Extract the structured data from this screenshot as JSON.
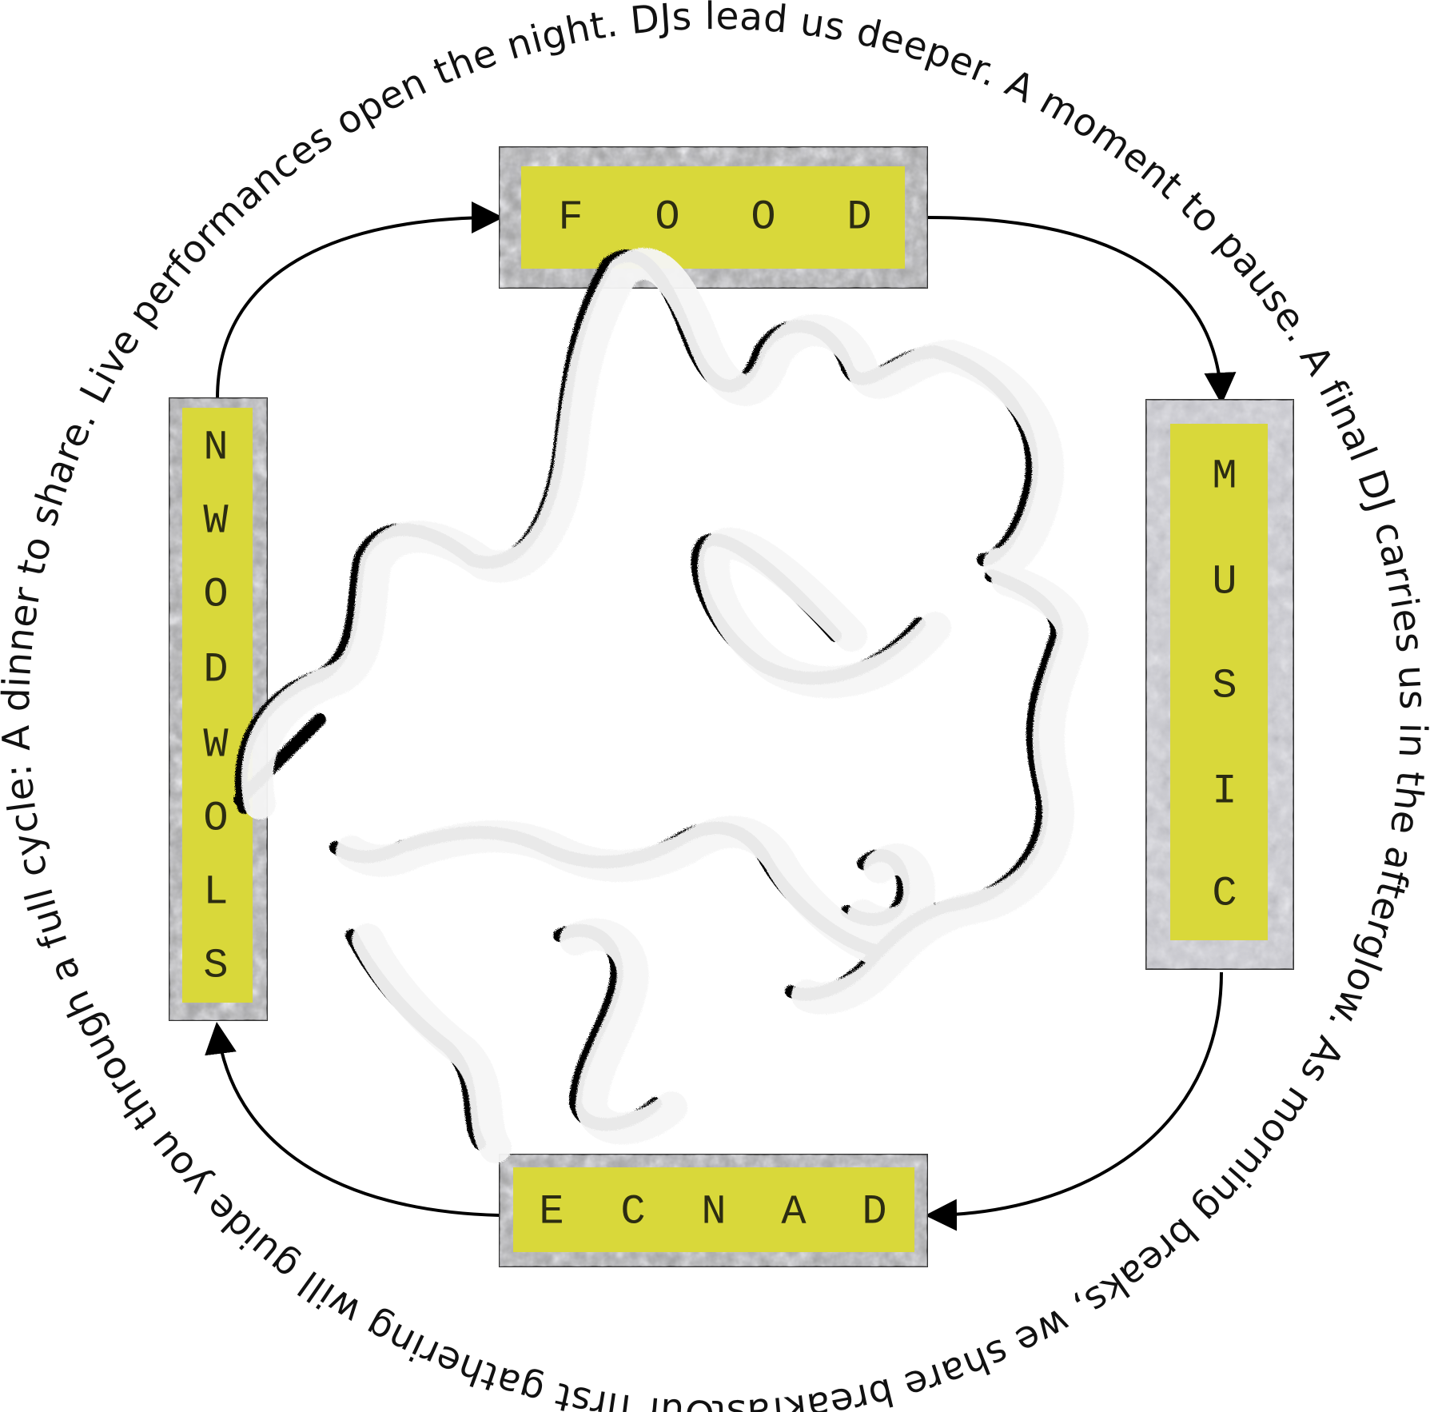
{
  "ring_caption": "Our first gathering will guide you through a full cycle: A dinner to share. Live performances open the night. DJs lead us deeper. A moment to pause. A final DJ carries us in the afterglow. As morning breaks, we share breakfast.",
  "stations": {
    "top": {
      "label": "FOOD",
      "letters": [
        "F",
        "O",
        "O",
        "D"
      ]
    },
    "right": {
      "label": "MUSIC",
      "letters": [
        "M",
        "U",
        "S",
        "I",
        "C"
      ]
    },
    "bottom": {
      "label": "ECNAD",
      "letters": [
        "E",
        "C",
        "N",
        "A",
        "D"
      ]
    },
    "left": {
      "label": "NWODWOLS",
      "letters": [
        "N",
        "W",
        "O",
        "D",
        "W",
        "O",
        "L",
        "S"
      ]
    }
  },
  "colors": {
    "label_fill": "#d9d83a",
    "frame_outer": "#9a9a9a",
    "frame_inner": "#c9c9cf",
    "arrow": "#000000",
    "scribble_ink": "#000000",
    "scribble_highlight": "#f6f6f6"
  }
}
